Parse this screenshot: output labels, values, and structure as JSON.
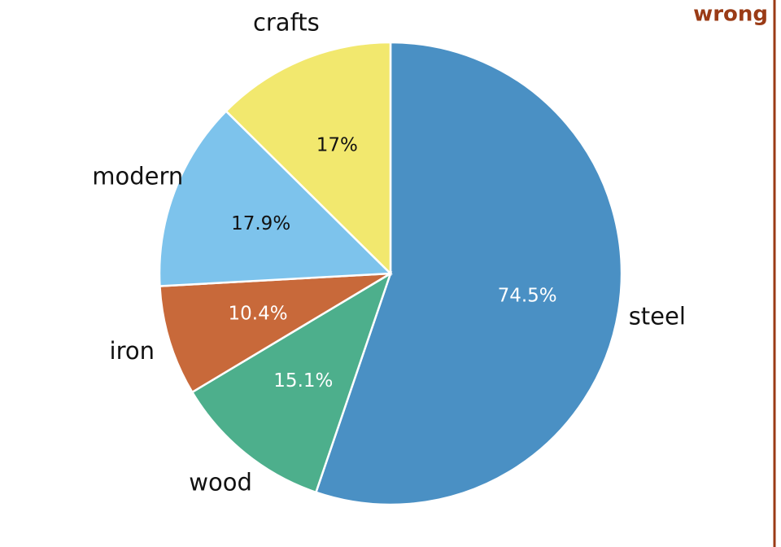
{
  "chart_data": {
    "type": "pie",
    "annotation": "wrong",
    "categories": [
      "steel",
      "wood",
      "iron",
      "modern",
      "crafts"
    ],
    "values": [
      74.5,
      15.1,
      10.4,
      17.9,
      17
    ],
    "value_labels": [
      "74.5%",
      "15.1%",
      "10.4%",
      "17.9%",
      "17%"
    ],
    "colors": [
      "#4a90c4",
      "#4daf8c",
      "#c8693a",
      "#7dc3ec",
      "#f2e86e"
    ]
  }
}
